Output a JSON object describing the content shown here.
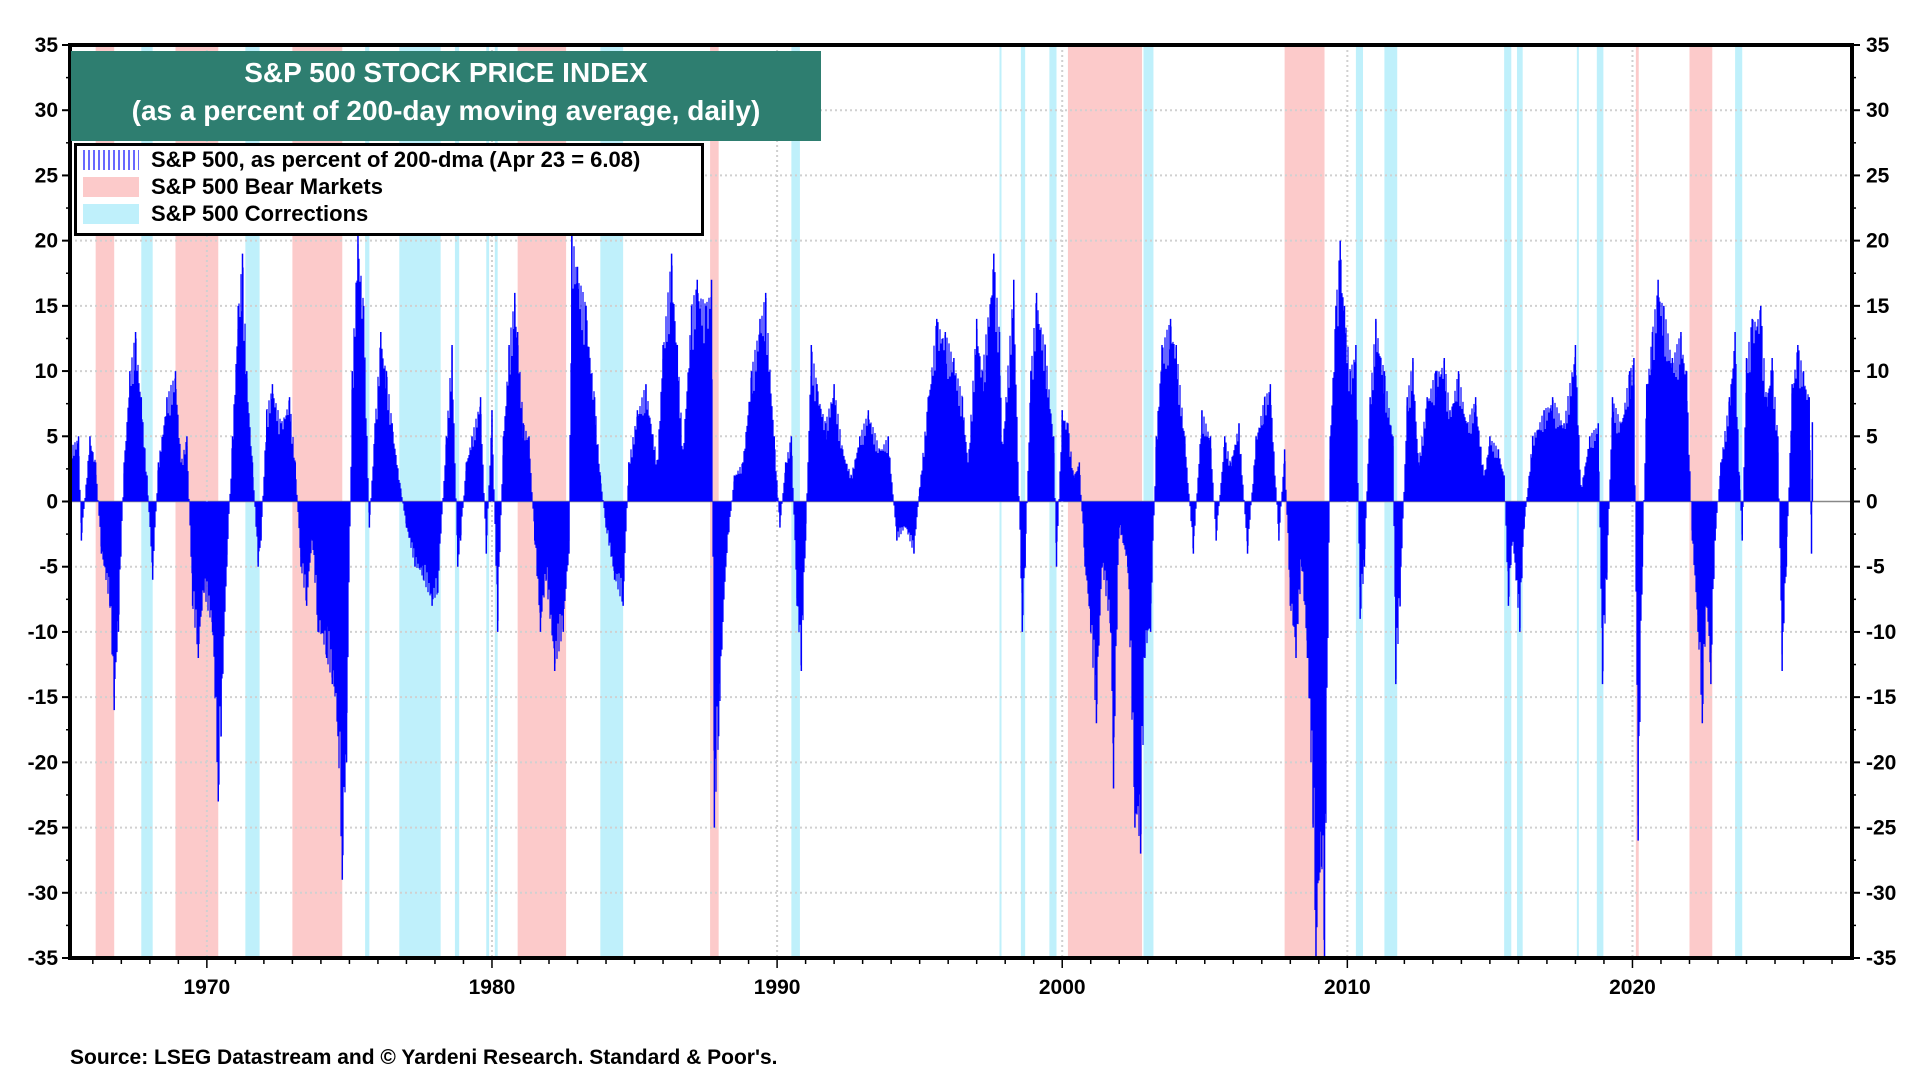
{
  "chart_data": {
    "type": "area",
    "title": "S&P 500 STOCK PRICE INDEX",
    "subtitle": "(as a percent of 200-day moving average, daily)",
    "xlim": [
      1965.2,
      2027.7
    ],
    "ylim": [
      -35,
      35
    ],
    "x_ticks": [
      1970,
      1980,
      1990,
      2000,
      2010,
      2020
    ],
    "y_ticks": [
      35,
      30,
      25,
      20,
      15,
      10,
      5,
      0,
      -5,
      -10,
      -15,
      -20,
      -25,
      -30,
      -35
    ],
    "grid": true,
    "legend_placement": "top-left",
    "legend": [
      {
        "label": "S&P 500, as percent of 200-dma (Apr 23 = 6.08)",
        "color": "#0000ff"
      },
      {
        "label": "S&P 500 Bear Markets",
        "color": "#fccaca"
      },
      {
        "label": "S&P 500 Corrections",
        "color": "#bff0fb"
      }
    ],
    "bear_markets": [
      [
        1966.1,
        1966.75
      ],
      [
        1968.9,
        1970.4
      ],
      [
        1973.0,
        1974.75
      ],
      [
        1980.9,
        1982.6
      ],
      [
        1987.65,
        1987.95
      ],
      [
        2000.2,
        2002.8
      ],
      [
        2007.8,
        2009.2
      ],
      [
        2020.12,
        2020.22
      ],
      [
        2022.0,
        2022.8
      ]
    ],
    "corrections": [
      [
        1967.7,
        1968.1
      ],
      [
        1971.35,
        1971.85
      ],
      [
        1975.55,
        1975.7
      ],
      [
        1976.75,
        1978.2
      ],
      [
        1978.7,
        1978.85
      ],
      [
        1979.8,
        1979.9
      ],
      [
        1980.1,
        1980.2
      ],
      [
        1983.8,
        1984.6
      ],
      [
        1990.5,
        1990.8
      ],
      [
        1997.8,
        1997.85
      ],
      [
        1998.55,
        1998.7
      ],
      [
        1999.55,
        1999.8
      ],
      [
        2002.85,
        2003.2
      ],
      [
        2010.3,
        2010.55
      ],
      [
        2011.3,
        2011.75
      ],
      [
        2015.5,
        2015.75
      ],
      [
        2015.95,
        2016.15
      ],
      [
        2018.05,
        2018.1
      ],
      [
        2018.75,
        2018.98
      ],
      [
        2023.6,
        2023.85
      ]
    ],
    "series": [
      {
        "name": "S&P 500, as percent of 200-dma",
        "points": [
          [
            1965.2,
            4
          ],
          [
            1965.5,
            5
          ],
          [
            1965.6,
            -3
          ],
          [
            1965.9,
            5
          ],
          [
            1966.1,
            3
          ],
          [
            1966.3,
            -4
          ],
          [
            1966.6,
            -8
          ],
          [
            1966.75,
            -16
          ],
          [
            1966.9,
            -10
          ],
          [
            1967.1,
            3
          ],
          [
            1967.3,
            10
          ],
          [
            1967.5,
            13
          ],
          [
            1967.7,
            8
          ],
          [
            1967.9,
            2
          ],
          [
            1968.1,
            -6
          ],
          [
            1968.3,
            3
          ],
          [
            1968.6,
            8
          ],
          [
            1968.9,
            10
          ],
          [
            1969.1,
            3
          ],
          [
            1969.3,
            5
          ],
          [
            1969.5,
            -8
          ],
          [
            1969.7,
            -12
          ],
          [
            1969.9,
            -7
          ],
          [
            1970.2,
            -10
          ],
          [
            1970.4,
            -23
          ],
          [
            1970.5,
            -18
          ],
          [
            1970.7,
            -5
          ],
          [
            1970.9,
            5
          ],
          [
            1971.1,
            15
          ],
          [
            1971.25,
            19
          ],
          [
            1971.4,
            10
          ],
          [
            1971.6,
            3
          ],
          [
            1971.8,
            -5
          ],
          [
            1971.9,
            -3
          ],
          [
            1972.1,
            7
          ],
          [
            1972.3,
            9
          ],
          [
            1972.6,
            6
          ],
          [
            1972.9,
            8
          ],
          [
            1973.1,
            3
          ],
          [
            1973.3,
            -5
          ],
          [
            1973.5,
            -8
          ],
          [
            1973.7,
            -3
          ],
          [
            1973.9,
            -10
          ],
          [
            1974.2,
            -12
          ],
          [
            1974.4,
            -14
          ],
          [
            1974.6,
            -18
          ],
          [
            1974.75,
            -29
          ],
          [
            1974.9,
            -20
          ],
          [
            1975.1,
            10
          ],
          [
            1975.3,
            21
          ],
          [
            1975.5,
            15
          ],
          [
            1975.7,
            -2
          ],
          [
            1975.9,
            6
          ],
          [
            1976.1,
            13
          ],
          [
            1976.3,
            10
          ],
          [
            1976.5,
            6
          ],
          [
            1976.8,
            1
          ],
          [
            1977.0,
            -2
          ],
          [
            1977.3,
            -5
          ],
          [
            1977.6,
            -6
          ],
          [
            1977.9,
            -8
          ],
          [
            1978.1,
            -7
          ],
          [
            1978.4,
            5
          ],
          [
            1978.6,
            12
          ],
          [
            1978.8,
            -5
          ],
          [
            1978.9,
            -3
          ],
          [
            1979.1,
            3
          ],
          [
            1979.3,
            5
          ],
          [
            1979.6,
            8
          ],
          [
            1979.8,
            -4
          ],
          [
            1980.0,
            7
          ],
          [
            1980.2,
            -10
          ],
          [
            1980.4,
            5
          ],
          [
            1980.6,
            12
          ],
          [
            1980.8,
            16
          ],
          [
            1980.9,
            13
          ],
          [
            1981.1,
            6
          ],
          [
            1981.3,
            5
          ],
          [
            1981.5,
            -3
          ],
          [
            1981.7,
            -10
          ],
          [
            1981.9,
            -6
          ],
          [
            1982.2,
            -13
          ],
          [
            1982.5,
            -10
          ],
          [
            1982.7,
            -4
          ],
          [
            1982.8,
            21
          ],
          [
            1983.0,
            18
          ],
          [
            1983.3,
            15
          ],
          [
            1983.6,
            8
          ],
          [
            1983.8,
            2
          ],
          [
            1984.0,
            -2
          ],
          [
            1984.3,
            -6
          ],
          [
            1984.6,
            -8
          ],
          [
            1984.8,
            3
          ],
          [
            1985.1,
            7
          ],
          [
            1985.4,
            9
          ],
          [
            1985.8,
            3
          ],
          [
            1986.0,
            12
          ],
          [
            1986.3,
            19
          ],
          [
            1986.5,
            12
          ],
          [
            1986.7,
            4
          ],
          [
            1987.0,
            15
          ],
          [
            1987.2,
            17
          ],
          [
            1987.5,
            15
          ],
          [
            1987.7,
            17
          ],
          [
            1987.8,
            -25
          ],
          [
            1987.95,
            -18
          ],
          [
            1988.2,
            -5
          ],
          [
            1988.5,
            2
          ],
          [
            1988.8,
            3
          ],
          [
            1989.1,
            10
          ],
          [
            1989.4,
            14
          ],
          [
            1989.6,
            16
          ],
          [
            1989.9,
            5
          ],
          [
            1990.1,
            -2
          ],
          [
            1990.3,
            3
          ],
          [
            1990.5,
            5
          ],
          [
            1990.7,
            -8
          ],
          [
            1990.85,
            -13
          ],
          [
            1991.0,
            -3
          ],
          [
            1991.2,
            12
          ],
          [
            1991.4,
            9
          ],
          [
            1991.7,
            6
          ],
          [
            1992.0,
            9
          ],
          [
            1992.3,
            4
          ],
          [
            1992.6,
            2
          ],
          [
            1992.9,
            5
          ],
          [
            1993.2,
            7
          ],
          [
            1993.6,
            4
          ],
          [
            1993.9,
            5
          ],
          [
            1994.2,
            -3
          ],
          [
            1994.5,
            -2
          ],
          [
            1994.8,
            -4
          ],
          [
            1995.0,
            1
          ],
          [
            1995.3,
            8
          ],
          [
            1995.6,
            14
          ],
          [
            1995.9,
            13
          ],
          [
            1996.2,
            11
          ],
          [
            1996.5,
            8
          ],
          [
            1996.7,
            3
          ],
          [
            1997.0,
            14
          ],
          [
            1997.2,
            10
          ],
          [
            1997.6,
            19
          ],
          [
            1997.8,
            13
          ],
          [
            1997.9,
            4
          ],
          [
            1998.3,
            17
          ],
          [
            1998.6,
            -10
          ],
          [
            1998.7,
            -5
          ],
          [
            1998.9,
            10
          ],
          [
            1999.1,
            16
          ],
          [
            1999.4,
            12
          ],
          [
            1999.7,
            5
          ],
          [
            1999.8,
            -5
          ],
          [
            2000.0,
            7
          ],
          [
            2000.2,
            6
          ],
          [
            2000.4,
            2
          ],
          [
            2000.6,
            3
          ],
          [
            2000.8,
            -5
          ],
          [
            2001.0,
            -10
          ],
          [
            2001.2,
            -17
          ],
          [
            2001.4,
            -5
          ],
          [
            2001.7,
            -10
          ],
          [
            2001.8,
            -22
          ],
          [
            2002.0,
            -2
          ],
          [
            2002.3,
            -5
          ],
          [
            2002.55,
            -25
          ],
          [
            2002.75,
            -27
          ],
          [
            2002.9,
            -12
          ],
          [
            2003.1,
            -10
          ],
          [
            2003.3,
            5
          ],
          [
            2003.5,
            12
          ],
          [
            2003.8,
            14
          ],
          [
            2004.0,
            12
          ],
          [
            2004.3,
            5
          ],
          [
            2004.6,
            -4
          ],
          [
            2004.9,
            7
          ],
          [
            2005.2,
            5
          ],
          [
            2005.4,
            -3
          ],
          [
            2005.7,
            5
          ],
          [
            2005.9,
            3
          ],
          [
            2006.2,
            6
          ],
          [
            2006.5,
            -4
          ],
          [
            2006.8,
            5
          ],
          [
            2007.1,
            8
          ],
          [
            2007.3,
            9
          ],
          [
            2007.6,
            -3
          ],
          [
            2007.8,
            4
          ],
          [
            2008.0,
            -8
          ],
          [
            2008.2,
            -12
          ],
          [
            2008.4,
            -5
          ],
          [
            2008.6,
            -12
          ],
          [
            2008.8,
            -25
          ],
          [
            2008.9,
            -35
          ],
          [
            2009.1,
            -28
          ],
          [
            2009.2,
            -35
          ],
          [
            2009.4,
            5
          ],
          [
            2009.6,
            15
          ],
          [
            2009.75,
            20
          ],
          [
            2009.9,
            15
          ],
          [
            2010.1,
            10
          ],
          [
            2010.3,
            12
          ],
          [
            2010.45,
            -9
          ],
          [
            2010.6,
            -5
          ],
          [
            2010.8,
            8
          ],
          [
            2011.0,
            14
          ],
          [
            2011.3,
            10
          ],
          [
            2011.6,
            5
          ],
          [
            2011.7,
            -14
          ],
          [
            2011.85,
            -8
          ],
          [
            2012.1,
            8
          ],
          [
            2012.3,
            11
          ],
          [
            2012.5,
            3
          ],
          [
            2012.8,
            8
          ],
          [
            2013.1,
            10
          ],
          [
            2013.4,
            11
          ],
          [
            2013.6,
            7
          ],
          [
            2013.9,
            10
          ],
          [
            2014.2,
            6
          ],
          [
            2014.5,
            8
          ],
          [
            2014.8,
            2
          ],
          [
            2015.0,
            5
          ],
          [
            2015.3,
            4
          ],
          [
            2015.5,
            2
          ],
          [
            2015.65,
            -8
          ],
          [
            2015.8,
            -3
          ],
          [
            2016.05,
            -10
          ],
          [
            2016.2,
            -2
          ],
          [
            2016.5,
            5
          ],
          [
            2016.9,
            7
          ],
          [
            2017.2,
            8
          ],
          [
            2017.6,
            6
          ],
          [
            2018.0,
            12
          ],
          [
            2018.2,
            1
          ],
          [
            2018.5,
            5
          ],
          [
            2018.8,
            6
          ],
          [
            2018.95,
            -14
          ],
          [
            2019.1,
            -6
          ],
          [
            2019.3,
            8
          ],
          [
            2019.6,
            6
          ],
          [
            2019.9,
            10
          ],
          [
            2020.05,
            11
          ],
          [
            2020.2,
            -26
          ],
          [
            2020.35,
            -5
          ],
          [
            2020.5,
            9
          ],
          [
            2020.7,
            13
          ],
          [
            2020.9,
            17
          ],
          [
            2021.1,
            15
          ],
          [
            2021.4,
            11
          ],
          [
            2021.7,
            13
          ],
          [
            2021.9,
            10
          ],
          [
            2022.1,
            -3
          ],
          [
            2022.3,
            -10
          ],
          [
            2022.45,
            -17
          ],
          [
            2022.6,
            -8
          ],
          [
            2022.75,
            -14
          ],
          [
            2022.9,
            -3
          ],
          [
            2023.1,
            3
          ],
          [
            2023.4,
            8
          ],
          [
            2023.6,
            13
          ],
          [
            2023.75,
            2
          ],
          [
            2023.85,
            -3
          ],
          [
            2024.0,
            11
          ],
          [
            2024.2,
            14
          ],
          [
            2024.5,
            15
          ],
          [
            2024.7,
            8
          ],
          [
            2024.9,
            11
          ],
          [
            2025.1,
            5
          ],
          [
            2025.25,
            -13
          ],
          [
            2025.4,
            -5
          ],
          [
            2025.6,
            9
          ],
          [
            2025.8,
            12
          ],
          [
            2026.0,
            10
          ],
          [
            2026.2,
            8
          ],
          [
            2026.28,
            -4
          ],
          [
            2026.31,
            6.08
          ]
        ]
      }
    ],
    "colors": {
      "series": "#0000ff",
      "bear": "#fccaca",
      "correction": "#bff0fb",
      "title_bg": "#2e7e70"
    }
  },
  "title": "S&P 500 STOCK PRICE INDEX",
  "subtitle": "(as a percent of 200-day moving average, daily)",
  "legend": {
    "series": "S&P 500, as percent of 200-dma (Apr 23 = 6.08)",
    "bear": "S&P 500 Bear Markets",
    "corrections": "S&P 500 Corrections"
  },
  "source": "Source: LSEG Datastream and © Yardeni Research. Standard & Poor's."
}
